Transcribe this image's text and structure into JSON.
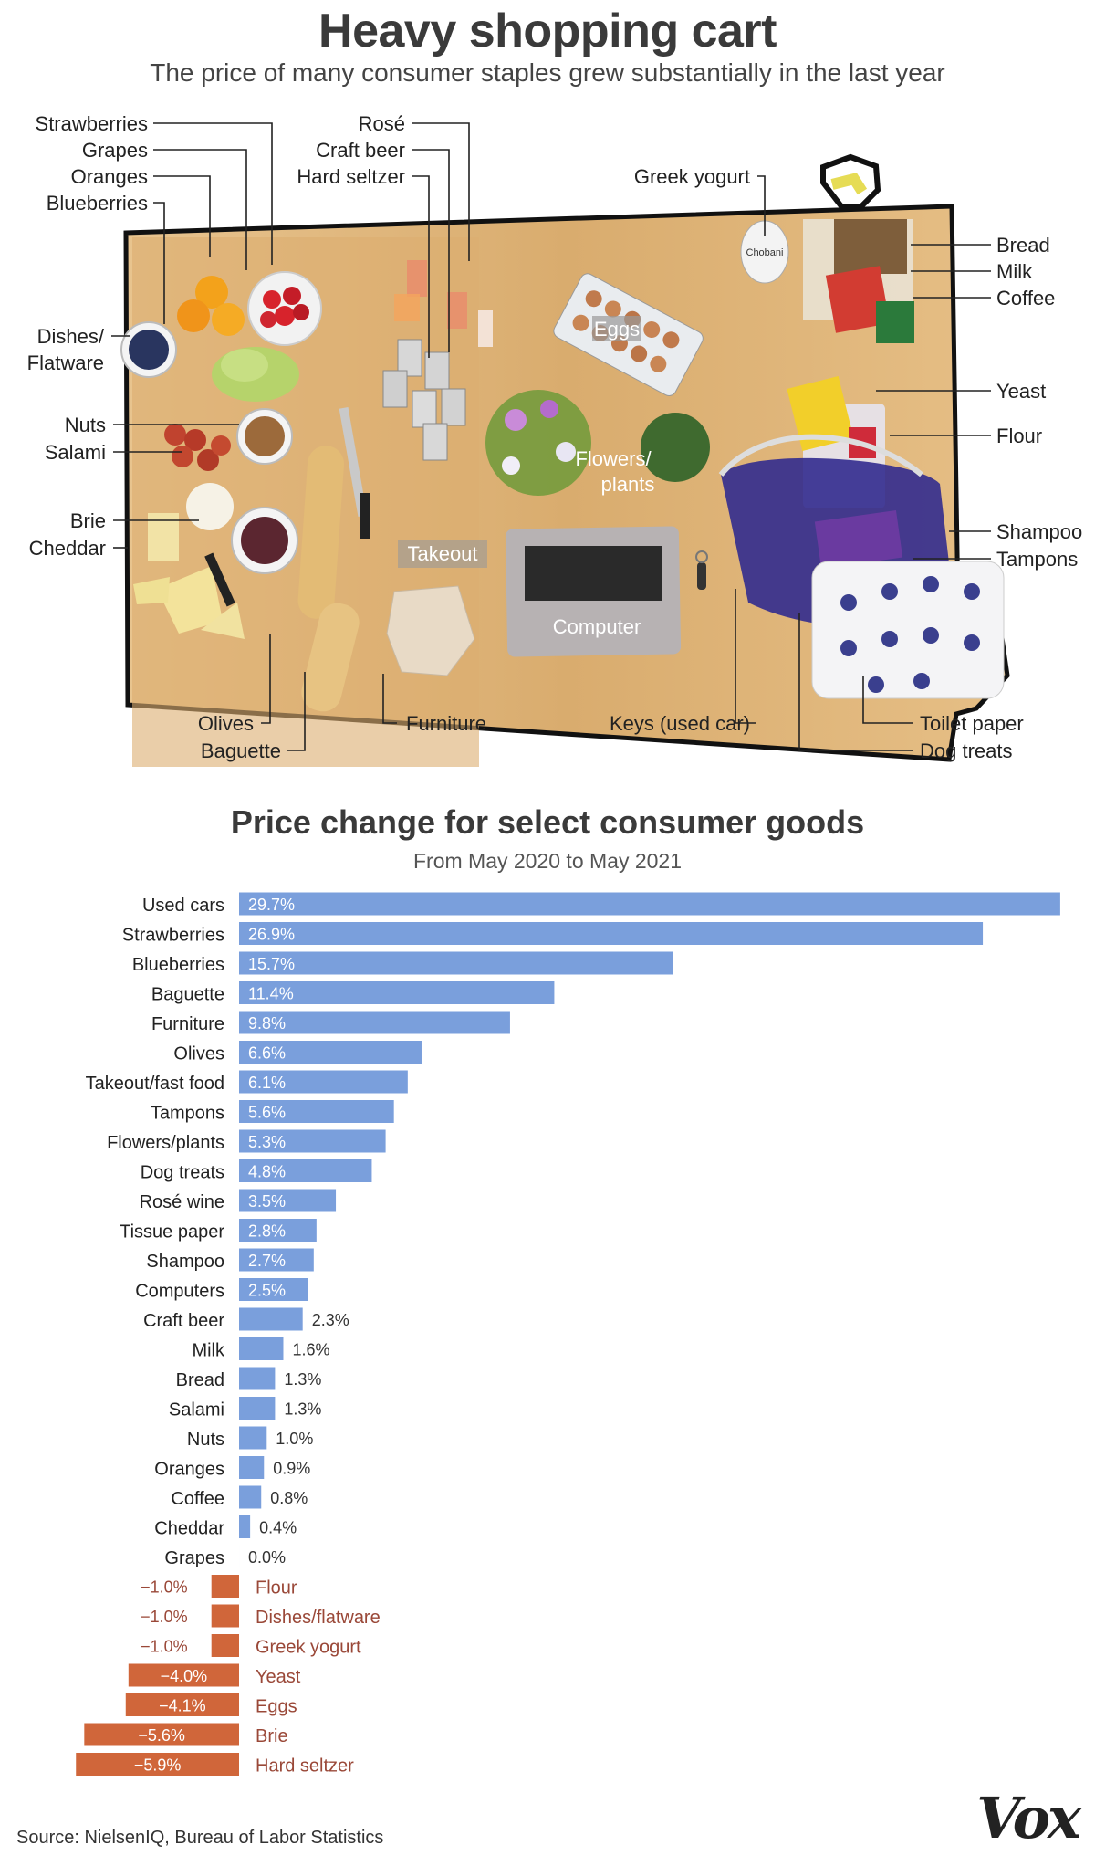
{
  "header": {
    "title": "Heavy shopping cart",
    "subtitle": "The price of many consumer staples grew substantially in the last year"
  },
  "photo": {
    "callouts_left": [
      "Strawberries",
      "Grapes",
      "Oranges",
      "Blueberries",
      "Dishes/",
      "Flatware",
      "Nuts",
      "Salami",
      "Brie",
      "Cheddar"
    ],
    "callouts_top": [
      "Rosé",
      "Craft beer",
      "Hard seltzer",
      "Greek yogurt"
    ],
    "callouts_right": [
      "Bread",
      "Milk",
      "Coffee",
      "Yeast",
      "Flour",
      "Shampoo",
      "Tampons"
    ],
    "callouts_bottom": [
      "Olives",
      "Baguette",
      "Furniture",
      "Keys (used car)",
      "Toilet paper",
      "Dog treats"
    ],
    "inline_labels": [
      "Eggs",
      "Flowers/",
      "plants",
      "Takeout",
      "Computer"
    ],
    "yogurt_brand": "Chobani"
  },
  "chart_data": {
    "type": "bar",
    "orientation": "horizontal",
    "title": "Price change for select consumer goods",
    "subtitle": "From May 2020 to May 2021",
    "categories": [
      "Used cars",
      "Strawberries",
      "Blueberries",
      "Baguette",
      "Furniture",
      "Olives",
      "Takeout/fast food",
      "Tampons",
      "Flowers/plants",
      "Dog treats",
      "Rosé wine",
      "Tissue paper",
      "Shampoo",
      "Computers",
      "Craft beer",
      "Milk",
      "Bread",
      "Salami",
      "Nuts",
      "Oranges",
      "Coffee",
      "Cheddar",
      "Grapes",
      "Flour",
      "Dishes/flatware",
      "Greek yogurt",
      "Yeast",
      "Eggs",
      "Brie",
      "Hard seltzer"
    ],
    "values": [
      29.7,
      26.9,
      15.7,
      11.4,
      9.8,
      6.6,
      6.1,
      5.6,
      5.3,
      4.8,
      3.5,
      2.8,
      2.7,
      2.5,
      2.3,
      1.6,
      1.3,
      1.3,
      1.0,
      0.9,
      0.8,
      0.4,
      0.0,
      -1.0,
      -1.0,
      -1.0,
      -4.0,
      -4.1,
      -5.6,
      -5.9
    ],
    "labels": [
      "29.7%",
      "26.9%",
      "15.7%",
      "11.4%",
      "9.8%",
      "6.6%",
      "6.1%",
      "5.6%",
      "5.3%",
      "4.8%",
      "3.5%",
      "2.8%",
      "2.7%",
      "2.5%",
      "2.3%",
      "1.6%",
      "1.3%",
      "1.3%",
      "1.0%",
      "0.9%",
      "0.8%",
      "0.4%",
      "0.0%",
      "−1.0%",
      "−1.0%",
      "−1.0%",
      "−4.0%",
      "−4.1%",
      "−5.6%",
      "−5.9%"
    ],
    "unit": "%",
    "colors": {
      "positive": "#7a9fdc",
      "negative": "#d0663a",
      "negative_text": "#9a4838"
    },
    "xlim": [
      -5.9,
      29.7
    ],
    "grid": false,
    "legend": "none"
  },
  "footer": {
    "source": "Source: NielsenIQ, Bureau of Labor Statistics",
    "logo": "Vox"
  }
}
